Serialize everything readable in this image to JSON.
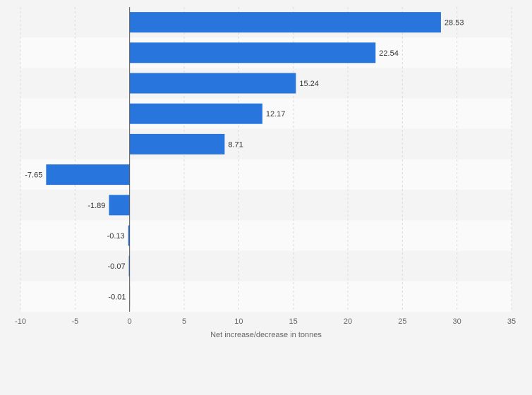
{
  "chart_data": {
    "type": "bar",
    "orientation": "horizontal",
    "categories": [
      "",
      "",
      "",
      "",
      "",
      "",
      "",
      "",
      "",
      ""
    ],
    "values": [
      28.53,
      22.54,
      15.24,
      12.17,
      8.71,
      -7.65,
      -1.89,
      -0.13,
      -0.07,
      -0.01
    ],
    "value_labels": [
      "28.53",
      "22.54",
      "15.24",
      "12.17",
      "8.71",
      "-7.65",
      "-1.89",
      "-0.13",
      "-0.07",
      "-0.01"
    ],
    "xlim": [
      -10,
      35
    ],
    "xticks": [
      -10,
      -5,
      0,
      5,
      10,
      15,
      20,
      25,
      30,
      35
    ],
    "xlabel": "Net increase/decrease in tonnes",
    "ylabel": "",
    "title": "",
    "grid": true,
    "bar_color": "#2876dd",
    "band_colors": [
      "#f4f4f4",
      "#fafafa"
    ]
  }
}
